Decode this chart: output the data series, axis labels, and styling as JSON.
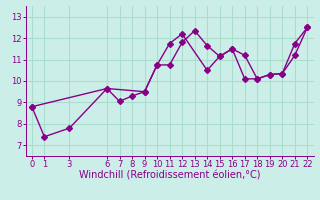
{
  "background_color": "#cceee8",
  "grid_color": "#aaddcc",
  "line_color": "#880088",
  "xlabel": "Windchill (Refroidissement éolien,°C)",
  "xlim": [
    -0.5,
    22.5
  ],
  "ylim": [
    6.5,
    13.5
  ],
  "xticks": [
    0,
    1,
    3,
    6,
    7,
    8,
    9,
    10,
    11,
    12,
    13,
    14,
    15,
    16,
    17,
    18,
    19,
    20,
    21,
    22
  ],
  "yticks": [
    7,
    8,
    9,
    10,
    11,
    12,
    13
  ],
  "line1_x": [
    0,
    1,
    3,
    6,
    7,
    8,
    9,
    10,
    11,
    12,
    13,
    14,
    15,
    16,
    17,
    18,
    19,
    20,
    21,
    22
  ],
  "line1_y": [
    8.8,
    7.4,
    7.8,
    9.65,
    9.05,
    9.3,
    9.5,
    10.75,
    10.75,
    11.8,
    12.35,
    11.65,
    11.15,
    11.5,
    11.2,
    10.1,
    10.3,
    10.35,
    11.2,
    12.5
  ],
  "line2_x": [
    0,
    6,
    9,
    10,
    11,
    12,
    14,
    15,
    16,
    17,
    18,
    19,
    20,
    21,
    22
  ],
  "line2_y": [
    8.8,
    9.65,
    9.5,
    10.75,
    11.75,
    12.2,
    10.5,
    11.15,
    11.5,
    10.1,
    10.1,
    10.3,
    10.35,
    11.75,
    12.5
  ],
  "marker_size": 3,
  "linewidth": 1.0,
  "tick_fontsize": 6,
  "label_fontsize": 7
}
